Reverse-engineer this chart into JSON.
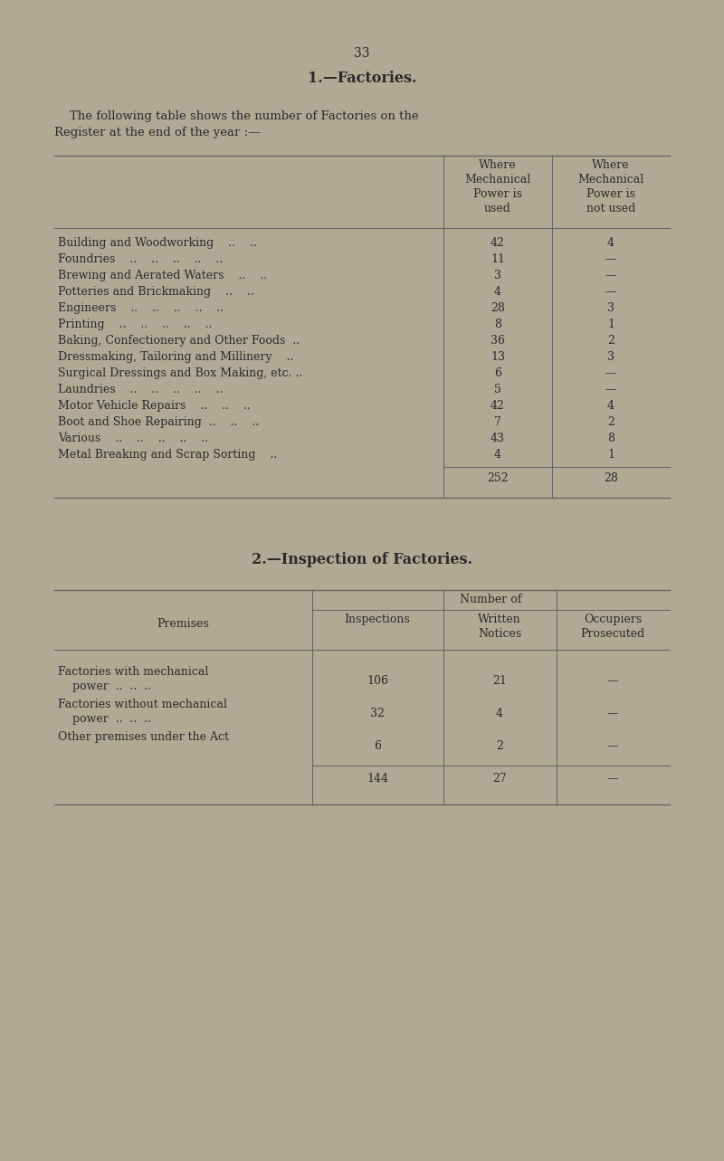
{
  "bg_color": "#b0aa95",
  "page_number": "33",
  "section1_title": "1.—Factories.",
  "section1_intro_line1": "    The following table shows the number of Factories on the",
  "section1_intro_line2": "Register at the end of the year :—",
  "table1_col2_header": "Where\nMechanical\nPower is\nused",
  "table1_col3_header": "Where\nMechanical\nPower is\nnot used",
  "table1_rows": [
    [
      "Building and Woodworking    ..    ..",
      "42",
      "4"
    ],
    [
      "Foundries    ..    ..    ..    ..    ..",
      "11",
      "—"
    ],
    [
      "Brewing and Aerated Waters    ..    ..",
      "3",
      "—"
    ],
    [
      "Potteries and Brickmaking    ..    ..",
      "4",
      "—"
    ],
    [
      "Engineers    ..    ..    ..    ..    ..",
      "28",
      "3"
    ],
    [
      "Printing    ..    ..    ..    ..    ..",
      "8",
      "1"
    ],
    [
      "Baking, Confectionery and Other Foods  ..",
      "36",
      "2"
    ],
    [
      "Dressmaking, Tailoring and Millinery    ..",
      "13",
      "3"
    ],
    [
      "Surgical Dressings and Box Making, etc. ..",
      "6",
      "—"
    ],
    [
      "Laundries    ..    ..    ..    ..    ..",
      "5",
      "—"
    ],
    [
      "Motor Vehicle Repairs    ..    ..    ..",
      "42",
      "4"
    ],
    [
      "Boot and Shoe Repairing  ..    ..    ..",
      "7",
      "2"
    ],
    [
      "Various    ..    ..    ..    ..    ..",
      "43",
      "8"
    ],
    [
      "Metal Breaking and Scrap Sorting    ..",
      "4",
      "1"
    ]
  ],
  "table1_totals": [
    "252",
    "28"
  ],
  "section2_title": "2.—Inspection of Factories.",
  "table2_premises_header": "Premises",
  "table2_number_of": "Number of",
  "table2_col_headers": [
    "Inspections",
    "Written\nNotices",
    "Occupiers\nProsecuted"
  ],
  "table2_rows": [
    [
      "Factories with mechanical\n    power  ..  ..  ..",
      "106",
      "21",
      "—"
    ],
    [
      "Factories without mechanical\n    power  ..  ..  ..",
      "32",
      "4",
      "—"
    ],
    [
      "Other premises under the Act",
      "6",
      "2",
      "—"
    ]
  ],
  "table2_totals": [
    "144",
    "27",
    "—"
  ],
  "text_color": "#2a2a2a",
  "line_color": "#666666"
}
